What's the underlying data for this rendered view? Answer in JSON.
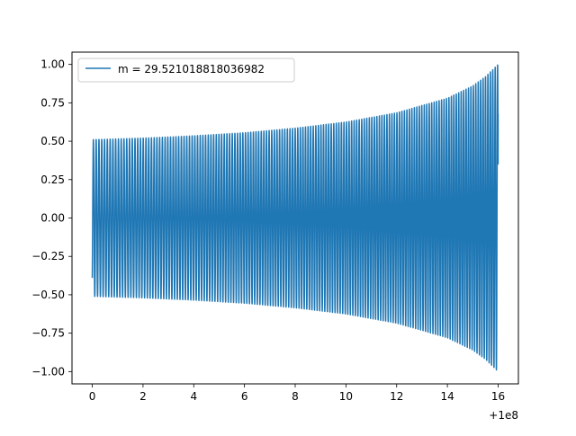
{
  "chart_data": {
    "type": "line",
    "title": "",
    "xlabel": "",
    "ylabel": "",
    "x_offset_label": "+1e8",
    "xlim": [
      -0.8,
      16.8
    ],
    "ylim": [
      -1.08,
      1.08
    ],
    "x_ticks": [
      0,
      2,
      4,
      6,
      8,
      10,
      12,
      14,
      16
    ],
    "x_tick_labels": [
      "0",
      "2",
      "4",
      "6",
      "8",
      "10",
      "12",
      "14",
      "16"
    ],
    "y_ticks": [
      1.0,
      0.75,
      0.5,
      0.25,
      0.0,
      -0.25,
      -0.5,
      -0.75,
      -1.0
    ],
    "y_tick_labels": [
      "1.00",
      "0.75",
      "0.50",
      "0.25",
      "0.00",
      "−0.25",
      "−0.50",
      "−0.75",
      "−1.00"
    ],
    "grid": false,
    "legend_position": "upper-left",
    "series": [
      {
        "name": "m = 29.521018818036982",
        "color": "#1f77b4",
        "x_start": 0,
        "x_end": 16,
        "envelope_x": [
          0,
          2,
          4,
          6,
          8,
          10,
          12,
          14,
          15,
          15.5,
          16
        ],
        "envelope_amplitude": [
          0.51,
          0.52,
          0.535,
          0.555,
          0.585,
          0.625,
          0.685,
          0.78,
          0.86,
          0.92,
          1.0
        ],
        "start_value": -0.39,
        "end_value": 0.68,
        "approx_cycles": 145
      }
    ]
  }
}
